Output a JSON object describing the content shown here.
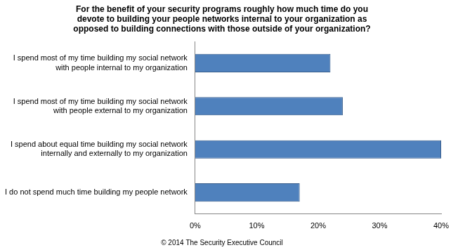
{
  "chart_data": {
    "type": "bar",
    "orientation": "horizontal",
    "title": "For the benefit of your security programs roughly how much time do you devote to building your people networks internal to your organization as opposed to building connections with those outside of your organization?",
    "categories": [
      "I spend most of my time building my social network with people internal to my organization",
      "I spend most of my time building my social network with people external to my organization",
      "I spend about equal time building my social network internally and externally to my organization",
      "I do not spend much time building my people network"
    ],
    "values": [
      22,
      24,
      40,
      17
    ],
    "color": "#4f81bd",
    "xlim": [
      0,
      40
    ],
    "xticks": [
      {
        "value": 0,
        "label": "0%"
      },
      {
        "value": 10,
        "label": "10%"
      },
      {
        "value": 20,
        "label": "20%"
      },
      {
        "value": 30,
        "label": "30%"
      },
      {
        "value": 40,
        "label": "40%"
      }
    ],
    "grid": false,
    "annotations": [
      "© 2014 The Security Executive Council"
    ]
  }
}
